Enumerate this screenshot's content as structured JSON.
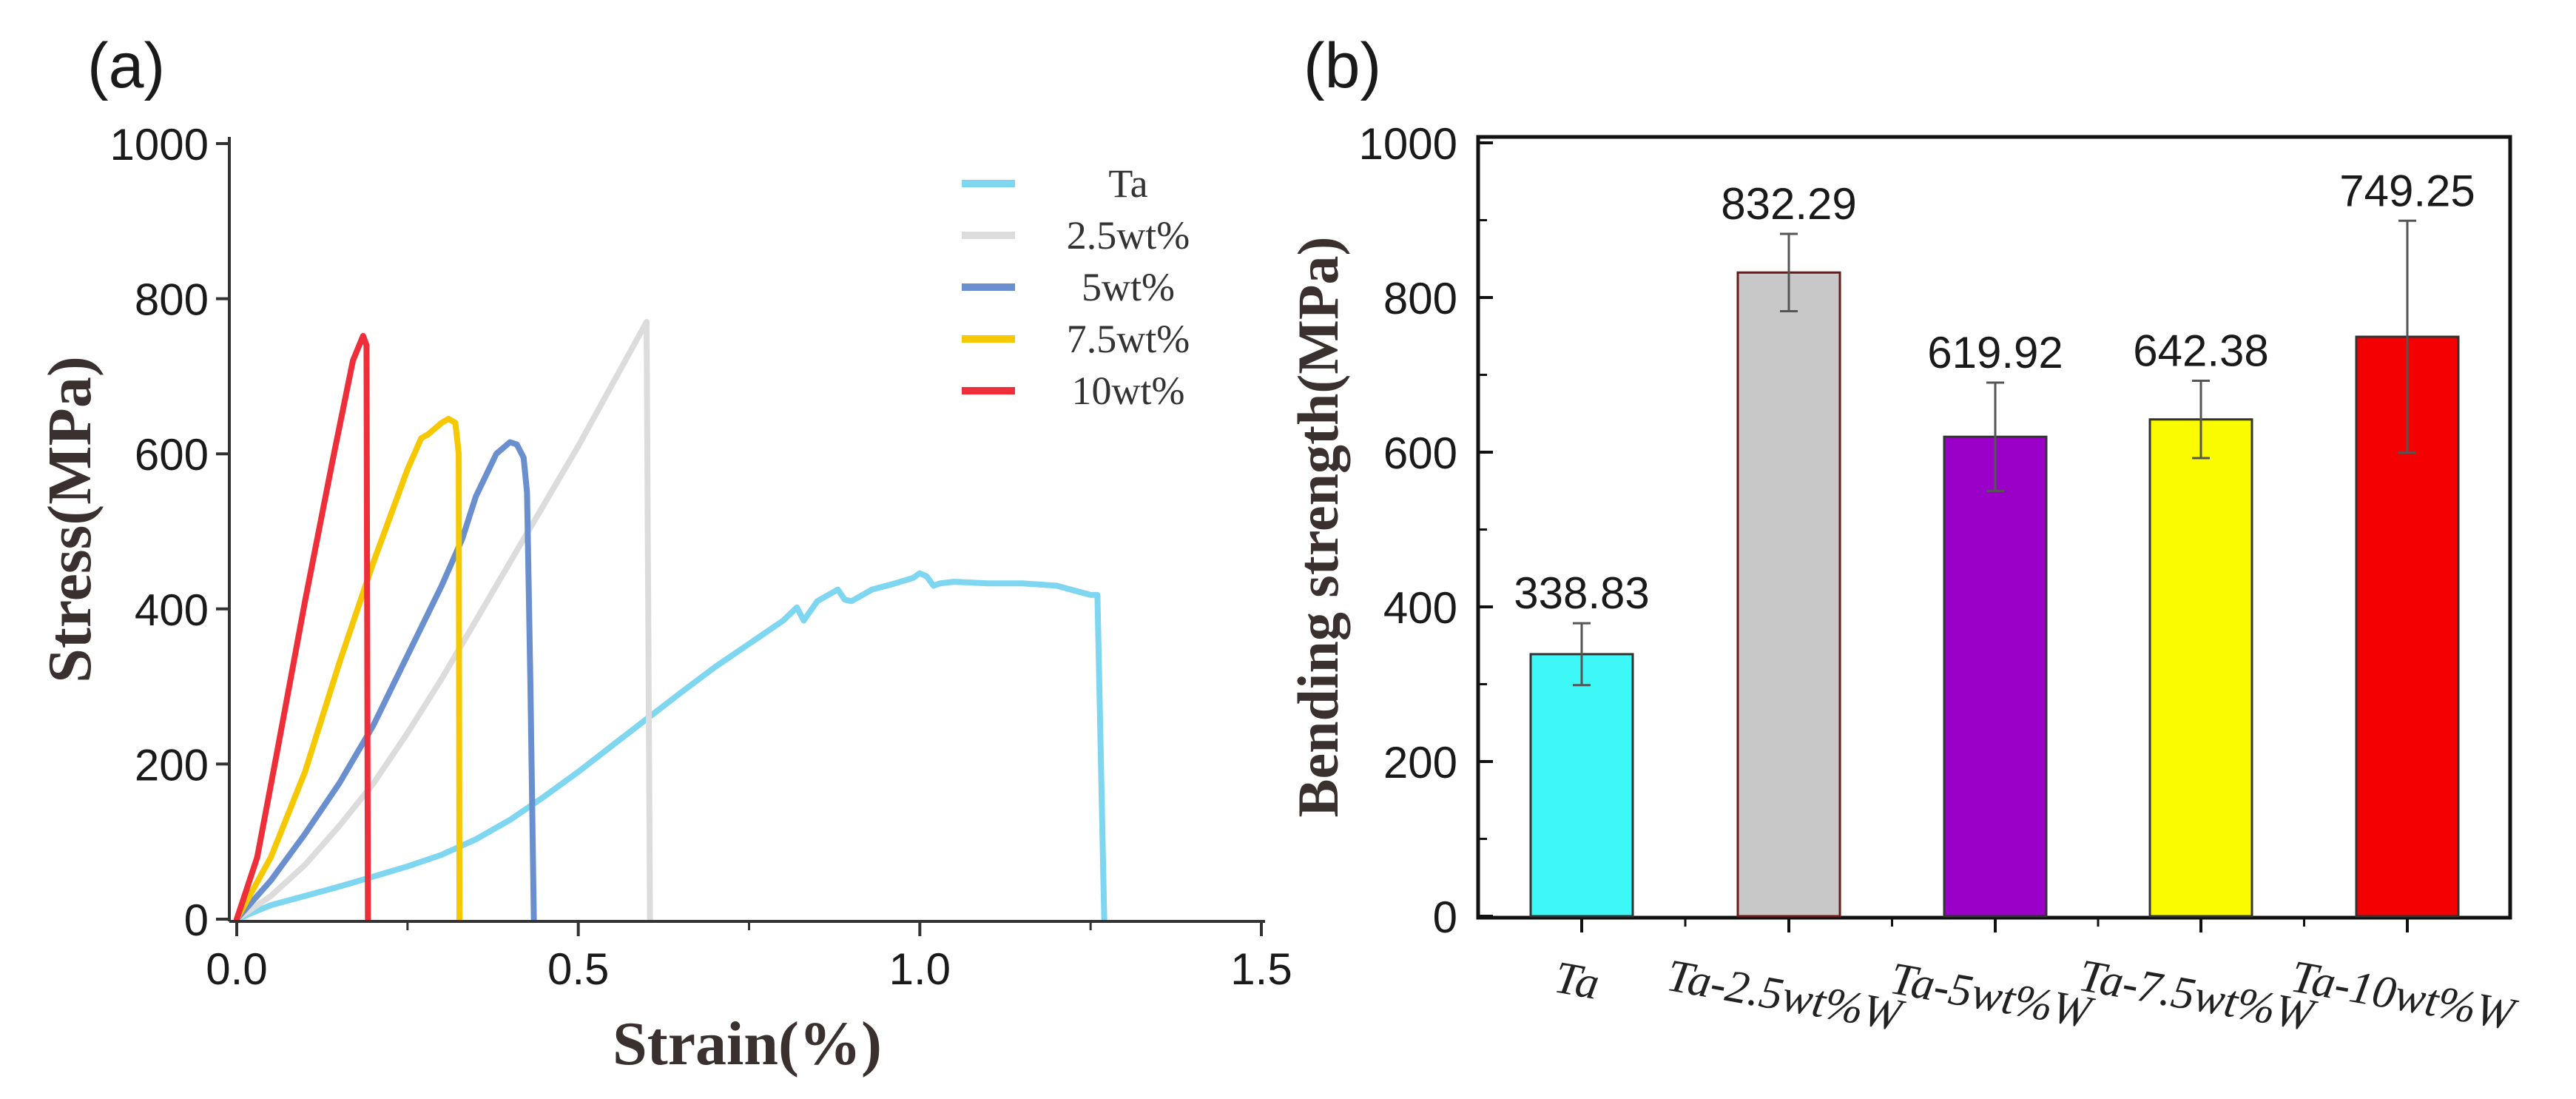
{
  "chart_data": [
    {
      "type": "line",
      "panel_label": "(a)",
      "xlabel": "Strain(%)",
      "ylabel": "Stress(MPa)",
      "xlim": [
        0,
        1.5
      ],
      "ylim": [
        0,
        1000
      ],
      "xticks": [
        "0.0",
        "0.5",
        "1.0",
        "1.5"
      ],
      "yticks": [
        "0",
        "200",
        "400",
        "600",
        "800",
        "1000"
      ],
      "legend_position": "top-right",
      "series": [
        {
          "name": "Ta",
          "color": "#7fd6f0",
          "x": [
            0,
            0.05,
            0.1,
            0.15,
            0.2,
            0.25,
            0.3,
            0.35,
            0.4,
            0.45,
            0.5,
            0.55,
            0.6,
            0.65,
            0.7,
            0.75,
            0.8,
            0.82,
            0.83,
            0.85,
            0.87,
            0.88,
            0.89,
            0.9,
            0.93,
            0.96,
            0.99,
            1.0,
            1.01,
            1.02,
            1.03,
            1.05,
            1.1,
            1.15,
            1.2,
            1.25,
            1.26,
            1.27
          ],
          "y": [
            0,
            18,
            30,
            42,
            55,
            68,
            83,
            103,
            128,
            158,
            190,
            224,
            258,
            292,
            325,
            355,
            385,
            402,
            385,
            410,
            420,
            425,
            412,
            410,
            425,
            432,
            440,
            446,
            442,
            430,
            433,
            435,
            433,
            433,
            430,
            418,
            418,
            0
          ]
        },
        {
          "name": "2.5wt%",
          "color": "#dcdcdc",
          "x": [
            0,
            0.05,
            0.1,
            0.15,
            0.2,
            0.25,
            0.3,
            0.35,
            0.4,
            0.45,
            0.5,
            0.55,
            0.6,
            0.605
          ],
          "y": [
            0,
            30,
            70,
            120,
            175,
            240,
            310,
            385,
            460,
            535,
            610,
            690,
            770,
            0
          ]
        },
        {
          "name": "5wt%",
          "color": "#6a8fcf",
          "x": [
            0,
            0.05,
            0.1,
            0.15,
            0.2,
            0.25,
            0.3,
            0.33,
            0.35,
            0.38,
            0.4,
            0.41,
            0.42,
            0.425,
            0.43,
            0.435
          ],
          "y": [
            0,
            50,
            110,
            175,
            250,
            340,
            430,
            490,
            545,
            600,
            615,
            612,
            595,
            550,
            300,
            0
          ]
        },
        {
          "name": "7.5wt%",
          "color": "#f5c800",
          "x": [
            0,
            0.05,
            0.1,
            0.15,
            0.2,
            0.25,
            0.27,
            0.28,
            0.3,
            0.31,
            0.32,
            0.325,
            0.326
          ],
          "y": [
            0,
            80,
            190,
            330,
            460,
            580,
            620,
            625,
            640,
            645,
            640,
            600,
            0
          ]
        },
        {
          "name": "10wt%",
          "color": "#ee2f3a",
          "x": [
            0,
            0.03,
            0.06,
            0.1,
            0.14,
            0.17,
            0.185,
            0.19,
            0.192
          ],
          "y": [
            0,
            80,
            220,
            410,
            590,
            720,
            752,
            740,
            0
          ]
        }
      ]
    },
    {
      "type": "bar",
      "panel_label": "(b)",
      "xlabel": "",
      "ylabel": "Bending strength(MPa)",
      "ylim": [
        0,
        1000
      ],
      "yticks": [
        "0",
        "200",
        "400",
        "600",
        "800",
        "1000"
      ],
      "categories": [
        "Ta",
        "Ta-2.5wt%W",
        "Ta-5wt%W",
        "Ta-7.5wt%W",
        "Ta-10wt%W"
      ],
      "values": [
        338.83,
        832.29,
        619.92,
        642.38,
        749.25
      ],
      "value_labels": [
        "338.83",
        "832.29",
        "619.92",
        "642.38",
        "749.25"
      ],
      "errors": [
        40,
        50,
        70,
        50,
        150
      ],
      "colors": [
        "#3ef8f8",
        "#c8c8c8",
        "#9b00c8",
        "#fbfb00",
        "#f50000"
      ]
    }
  ]
}
